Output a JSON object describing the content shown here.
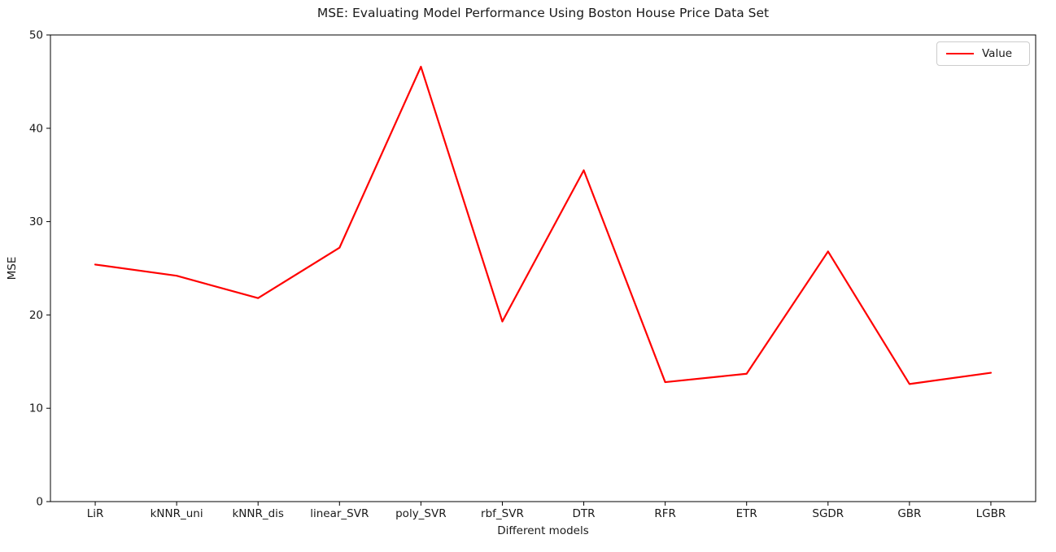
{
  "chart_data": {
    "type": "line",
    "title": "MSE: Evaluating Model Performance Using Boston House Price Data Set",
    "xlabel": "Different models",
    "ylabel": "MSE",
    "categories": [
      "LiR",
      "kNNR_uni",
      "kNNR_dis",
      "linear_SVR",
      "poly_SVR",
      "rbf_SVR",
      "DTR",
      "RFR",
      "ETR",
      "SGDR",
      "GBR",
      "LGBR"
    ],
    "series": [
      {
        "name": "Value",
        "color": "#ff0000",
        "values": [
          25.4,
          24.2,
          21.8,
          27.2,
          46.6,
          19.3,
          35.5,
          12.8,
          13.7,
          26.8,
          12.6,
          13.8
        ]
      }
    ],
    "ylim": [
      0,
      50
    ],
    "yticks": [
      0,
      10,
      20,
      30,
      40,
      50
    ],
    "grid": false,
    "legend_position": "upper right",
    "axis_color": "#000000",
    "text_color": "#1a1a1a"
  }
}
